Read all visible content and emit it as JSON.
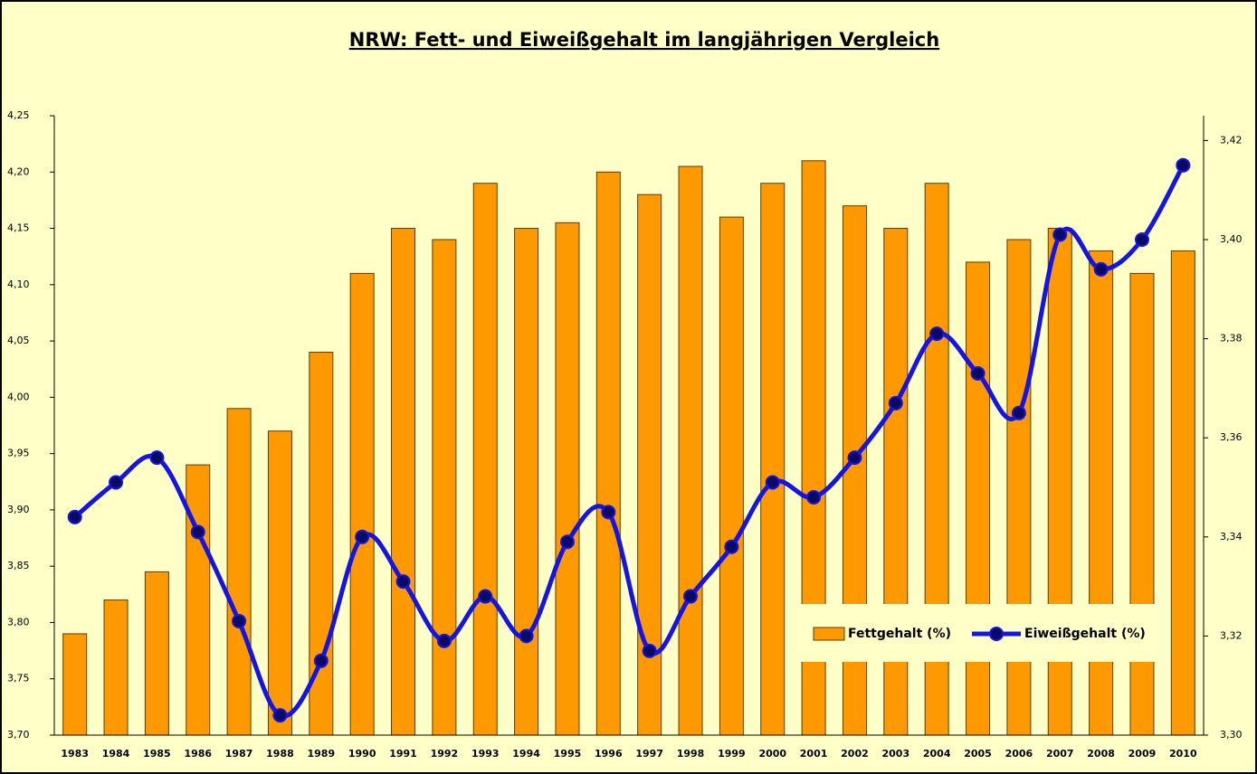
{
  "chart_data": {
    "type": "bar_line",
    "title": "NRW: Fett- und Eiweißgehalt im langjährigen Vergleich",
    "categories": [
      "1983",
      "1984",
      "1985",
      "1986",
      "1987",
      "1988",
      "1989",
      "1990",
      "1991",
      "1992",
      "1993",
      "1994",
      "1995",
      "1996",
      "1997",
      "1998",
      "1999",
      "2000",
      "2001",
      "2002",
      "2003",
      "2004",
      "2005",
      "2006",
      "2007",
      "2008",
      "2009",
      "2010"
    ],
    "series": [
      {
        "name": "Fettgehalt (%)",
        "type": "bar",
        "color": "#ff9900",
        "axis": "y",
        "values": [
          3.79,
          3.82,
          3.845,
          3.94,
          3.99,
          3.97,
          4.04,
          4.11,
          4.15,
          4.14,
          4.19,
          4.15,
          4.155,
          4.2,
          4.18,
          4.205,
          4.16,
          4.19,
          4.21,
          4.17,
          4.15,
          4.19,
          4.12,
          4.14,
          4.15,
          4.13,
          4.11,
          4.13
        ]
      },
      {
        "name": "Eiweißgehalt (%)",
        "type": "line",
        "color": "#1414e6",
        "axis": "y2",
        "values": [
          3.344,
          3.351,
          3.356,
          3.341,
          3.323,
          3.304,
          3.315,
          3.34,
          3.331,
          3.319,
          3.328,
          3.32,
          3.339,
          3.345,
          3.317,
          3.328,
          3.338,
          3.351,
          3.348,
          3.356,
          3.367,
          3.381,
          3.373,
          3.365,
          3.401,
          3.394,
          3.4,
          3.415
        ]
      }
    ],
    "ylim": [
      3.7,
      4.25
    ],
    "yticks": [
      {
        "value": 3.7,
        "label": "3,70"
      },
      {
        "value": 3.75,
        "label": "3,75"
      },
      {
        "value": 3.8,
        "label": "3,80"
      },
      {
        "value": 3.85,
        "label": "3,85"
      },
      {
        "value": 3.9,
        "label": "3,90"
      },
      {
        "value": 3.95,
        "label": "3,95"
      },
      {
        "value": 4.0,
        "label": "4,00"
      },
      {
        "value": 4.05,
        "label": "4,05"
      },
      {
        "value": 4.1,
        "label": "4,10"
      },
      {
        "value": 4.15,
        "label": "4,15"
      },
      {
        "value": 4.2,
        "label": "4,20"
      },
      {
        "value": 4.25,
        "label": "4,25"
      }
    ],
    "y2lim": [
      3.3,
      3.425
    ],
    "y2ticks": [
      {
        "value": 3.3,
        "label": "3,30"
      },
      {
        "value": 3.32,
        "label": "3,32"
      },
      {
        "value": 3.34,
        "label": "3,34"
      },
      {
        "value": 3.36,
        "label": "3,36"
      },
      {
        "value": 3.38,
        "label": "3,38"
      },
      {
        "value": 3.4,
        "label": "3,40"
      },
      {
        "value": 3.42,
        "label": "3,42"
      }
    ],
    "grid": false,
    "legend": "lower right"
  }
}
